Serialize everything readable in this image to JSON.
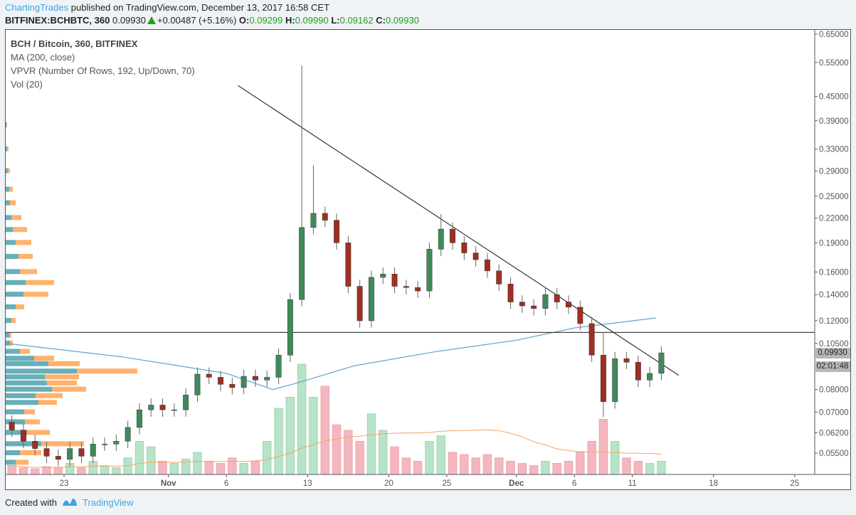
{
  "header": {
    "author": "ChartingTrades",
    "published": "published on TradingView.com, December 13, 2017 16:58 CET",
    "symbol": "BITFINEX:BCHBTC, 360",
    "last": "0.09930",
    "change": "+0.00487 (+5.16%)",
    "o_label": "O:",
    "o": "0.09299",
    "h_label": "H:",
    "h": "0.09990",
    "l_label": "L:",
    "l": "0.09162",
    "c_label": "C:",
    "c": "0.09930",
    "up_color": "#21a020"
  },
  "legend": {
    "title": "BCH / Bitcoin, 360, BITFINEX",
    "ma": "MA (200, close)",
    "vpvr": "VPVR (Number Of Rows, 192, Up/Down, 70)",
    "vol": "Vol (20)"
  },
  "price_labels": {
    "last": "0.09930",
    "countdown": "02:01:48"
  },
  "footer": {
    "created": "Created with",
    "brand": "TradingView"
  },
  "chart_data": {
    "type": "candlestick",
    "scale": "log",
    "ylim": [
      0.05,
      0.65
    ],
    "y_ticks": [
      "0.65000",
      "0.55000",
      "0.45000",
      "0.39000",
      "0.33000",
      "0.29000",
      "0.25000",
      "0.22000",
      "0.19000",
      "0.16000",
      "0.14000",
      "0.12000",
      "0.10500",
      "0.08000",
      "0.07000",
      "0.06200",
      "0.05500"
    ],
    "x_ticks": [
      {
        "label": "23",
        "date": "2017-10-23",
        "bold": false
      },
      {
        "label": "Nov",
        "date": "2017-11-01",
        "bold": true
      },
      {
        "label": "6",
        "date": "2017-11-06",
        "bold": false
      },
      {
        "label": "13",
        "date": "2017-11-13",
        "bold": false
      },
      {
        "label": "20",
        "date": "2017-11-20",
        "bold": false
      },
      {
        "label": "25",
        "date": "2017-11-25",
        "bold": false
      },
      {
        "label": "Dec",
        "date": "2017-12-01",
        "bold": true
      },
      {
        "label": "6",
        "date": "2017-12-06",
        "bold": false
      },
      {
        "label": "11",
        "date": "2017-12-11",
        "bold": false
      },
      {
        "label": "18",
        "date": "2017-12-18",
        "bold": false
      },
      {
        "label": "25",
        "date": "2017-12-25",
        "bold": false
      }
    ],
    "start_date": "2017-10-18",
    "close": [
      0.063,
      0.059,
      0.0565,
      0.054,
      0.053,
      0.0565,
      0.054,
      0.058,
      0.058,
      0.059,
      0.064,
      0.071,
      0.073,
      0.071,
      0.071,
      0.0775,
      0.0876,
      0.086,
      0.0825,
      0.081,
      0.0865,
      0.0846,
      0.086,
      0.098,
      0.136,
      0.208,
      0.226,
      0.217,
      0.19,
      0.147,
      0.12,
      0.155,
      0.158,
      0.147,
      0.146,
      0.143,
      0.183,
      0.206,
      0.19,
      0.179,
      0.172,
      0.161,
      0.149,
      0.134,
      0.131,
      0.129,
      0.14,
      0.134,
      0.13,
      0.118,
      0.098,
      0.0745,
      0.096,
      0.094,
      0.0846,
      0.088,
      0.0993
    ],
    "first_open": 0.066,
    "wick_extremes": [
      {
        "date": "2017-11-12",
        "high": 0.54
      },
      {
        "date": "2017-11-13",
        "high": 0.3
      },
      {
        "date": "2017-11-24",
        "high": 0.225
      },
      {
        "date": "2017-12-08",
        "high": 0.112,
        "low": 0.068
      }
    ],
    "volume": [
      8,
      6,
      5,
      7,
      6,
      10,
      6,
      12,
      8,
      6,
      15,
      30,
      25,
      12,
      10,
      14,
      20,
      12,
      10,
      15,
      10,
      12,
      30,
      60,
      70,
      100,
      70,
      80,
      45,
      40,
      30,
      55,
      40,
      25,
      15,
      12,
      30,
      35,
      20,
      18,
      15,
      18,
      15,
      12,
      10,
      8,
      12,
      10,
      12,
      20,
      30,
      50,
      30,
      15,
      12,
      10,
      12
    ],
    "ma200": [
      {
        "date": "2017-10-18",
        "value": 0.105
      },
      {
        "date": "2017-10-28",
        "value": 0.097
      },
      {
        "date": "2017-11-06",
        "value": 0.088
      },
      {
        "date": "2017-11-10",
        "value": 0.08
      },
      {
        "date": "2017-11-12",
        "value": 0.083
      },
      {
        "date": "2017-11-17",
        "value": 0.092
      },
      {
        "date": "2017-11-24",
        "value": 0.1
      },
      {
        "date": "2017-12-01",
        "value": 0.107
      },
      {
        "date": "2017-12-06",
        "value": 0.115
      },
      {
        "date": "2017-12-13",
        "value": 0.122
      }
    ],
    "horizontal_line": 0.112,
    "trendline": [
      {
        "date": "2017-11-07",
        "value": 0.48
      },
      {
        "date": "2017-12-15",
        "value": 0.087
      }
    ],
    "vpvr": [
      [
        0.38,
        1,
        1
      ],
      [
        0.33,
        2,
        2
      ],
      [
        0.29,
        3,
        3
      ],
      [
        0.26,
        5,
        5
      ],
      [
        0.24,
        6,
        8
      ],
      [
        0.22,
        8,
        14
      ],
      [
        0.205,
        10,
        20
      ],
      [
        0.19,
        14,
        22
      ],
      [
        0.175,
        18,
        20
      ],
      [
        0.16,
        20,
        24
      ],
      [
        0.15,
        28,
        40
      ],
      [
        0.14,
        25,
        35
      ],
      [
        0.13,
        14,
        12
      ],
      [
        0.12,
        8,
        6
      ],
      [
        0.11,
        5,
        3
      ],
      [
        0.105,
        6,
        4
      ],
      [
        0.1,
        20,
        14
      ],
      [
        0.096,
        40,
        28
      ],
      [
        0.093,
        60,
        44
      ],
      [
        0.089,
        100,
        85
      ],
      [
        0.086,
        55,
        48
      ],
      [
        0.083,
        58,
        42
      ],
      [
        0.08,
        65,
        48
      ],
      [
        0.077,
        42,
        38
      ],
      [
        0.074,
        46,
        26
      ],
      [
        0.07,
        26,
        15
      ],
      [
        0.066,
        27,
        21
      ],
      [
        0.062,
        30,
        32
      ],
      [
        0.058,
        50,
        60
      ],
      [
        0.055,
        20,
        30
      ],
      [
        0.052,
        14,
        18
      ]
    ],
    "colors": {
      "up": "#3f8a5a",
      "down": "#9e2f22",
      "vol_up": "#b7e3c9",
      "vol_down": "#f5b7bf",
      "ma": "#5fa3c8",
      "vol_ma": "#f7a463",
      "vpvr_up": "#4ea1ab",
      "vpvr_down": "#ffa552"
    }
  }
}
